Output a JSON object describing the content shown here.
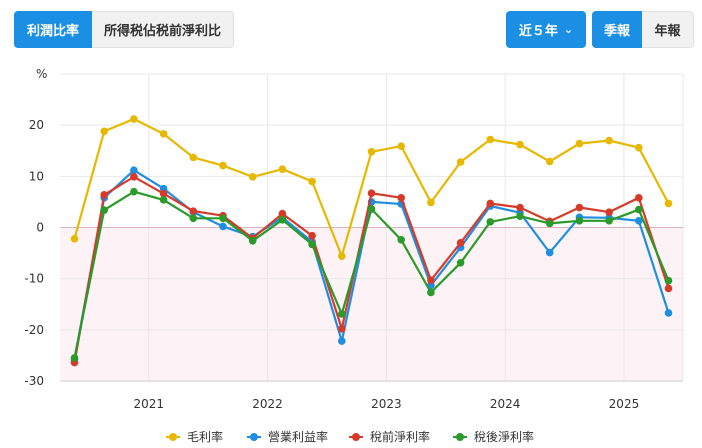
{
  "toolbar": {
    "tab_margin": "利潤比率",
    "tab_after_tax": "所得税佔税前淨利比",
    "range_label": "近５年",
    "freq_quarter": "季報",
    "freq_year": "年報"
  },
  "colors": {
    "accent": "#1a8fe3",
    "gross": "#e6b800",
    "operating": "#1f8de0",
    "pretax": "#d63b2a",
    "net": "#2a9a2a",
    "negative_band": "#fdf3f6",
    "zero_line": "#dcb3bd"
  },
  "chart_data": {
    "type": "line",
    "ylabel": "%",
    "ylim": [
      -30,
      30
    ],
    "yticks": [
      20,
      10,
      0,
      -10,
      -20,
      -30
    ],
    "x": [
      "2020Q2",
      "2020Q3",
      "2020Q4",
      "2021Q1",
      "2021Q2",
      "2021Q3",
      "2021Q4",
      "2022Q1",
      "2022Q2",
      "2022Q3",
      "2022Q4",
      "2023Q1",
      "2023Q2",
      "2023Q3",
      "2023Q4",
      "2024Q1",
      "2024Q2",
      "2024Q3",
      "2024Q4",
      "2025Q1",
      "2025Q2"
    ],
    "xtick_labels": [
      "2021",
      "2022",
      "2023",
      "2024",
      "2025"
    ],
    "xtick_positions": [
      3,
      7,
      11,
      15,
      19
    ],
    "legend_position": "bottom",
    "grid": true,
    "series": [
      {
        "name": "毛利率",
        "color": "#e6b800",
        "values": [
          -2.2,
          18.8,
          21.2,
          18.3,
          13.7,
          12.1,
          9.9,
          11.4,
          9.0,
          -5.6,
          14.8,
          15.9,
          4.9,
          12.8,
          17.2,
          16.2,
          12.9,
          16.4,
          17.0,
          15.6,
          4.7
        ]
      },
      {
        "name": "營業利益率",
        "color": "#1f8de0",
        "values": [
          -25.8,
          5.8,
          11.2,
          7.6,
          3.0,
          0.2,
          -1.8,
          2.0,
          -2.8,
          -22.2,
          5.0,
          4.6,
          -11.3,
          -3.9,
          4.2,
          2.9,
          -4.9,
          2.0,
          1.9,
          1.3,
          -16.7
        ]
      },
      {
        "name": "稅前淨利率",
        "color": "#d63b2a",
        "values": [
          -26.4,
          6.4,
          9.9,
          6.6,
          3.2,
          2.3,
          -2.1,
          2.7,
          -1.6,
          -19.8,
          6.7,
          5.8,
          -10.3,
          -3.0,
          4.7,
          3.9,
          1.2,
          3.9,
          3.0,
          5.8,
          -11.9
        ]
      },
      {
        "name": "稅後淨利率",
        "color": "#2a9a2a",
        "values": [
          -25.5,
          3.4,
          7.0,
          5.4,
          1.8,
          1.8,
          -2.6,
          1.5,
          -3.3,
          -16.9,
          3.6,
          -2.4,
          -12.7,
          -6.9,
          1.1,
          2.2,
          0.8,
          1.3,
          1.3,
          3.5,
          -10.4
        ]
      }
    ]
  }
}
